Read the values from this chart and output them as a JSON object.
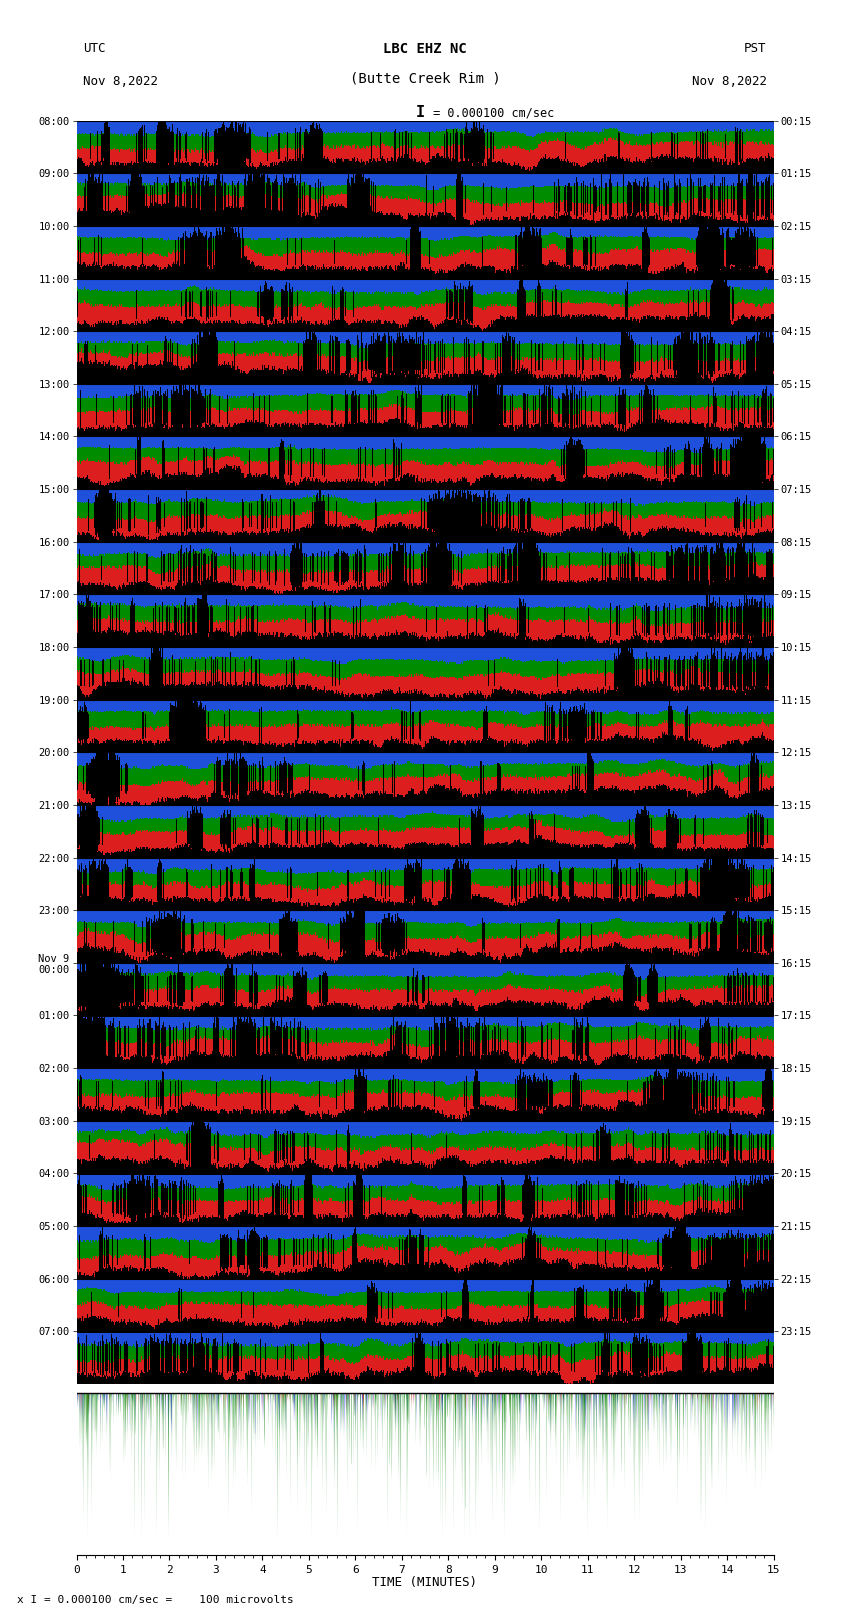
{
  "title_line1": "LBC EHZ NC",
  "title_line2": "(Butte Creek Rim )",
  "scale_text": "= 0.000100 cm/sec",
  "left_label": "UTC",
  "left_date": "Nov 8,2022",
  "right_label": "PST",
  "right_date": "Nov 8,2022",
  "xlabel": "TIME (MINUTES)",
  "bottom_note": "x I = 0.000100 cm/sec =    100 microvolts",
  "utc_times": [
    "08:00",
    "09:00",
    "10:00",
    "11:00",
    "12:00",
    "13:00",
    "14:00",
    "15:00",
    "16:00",
    "17:00",
    "18:00",
    "19:00",
    "20:00",
    "21:00",
    "22:00",
    "23:00",
    "Nov 9\n00:00",
    "01:00",
    "02:00",
    "03:00",
    "04:00",
    "05:00",
    "06:00",
    "07:00"
  ],
  "pst_times": [
    "00:15",
    "01:15",
    "02:15",
    "03:15",
    "04:15",
    "05:15",
    "06:15",
    "07:15",
    "08:15",
    "09:15",
    "10:15",
    "11:15",
    "12:15",
    "13:15",
    "14:15",
    "15:15",
    "16:15",
    "17:15",
    "18:15",
    "19:15",
    "20:15",
    "21:15",
    "22:15",
    "23:15"
  ],
  "n_rows": 24,
  "n_minutes": 15,
  "bg_color": "#ffffff",
  "figsize": [
    8.5,
    16.13
  ],
  "row_colors_cycle": [
    [
      "blue",
      "green",
      "red",
      "black"
    ],
    [
      "red",
      "blue",
      "green",
      "black"
    ],
    [
      "green",
      "red",
      "blue",
      "black"
    ],
    [
      "blue",
      "red",
      "green",
      "black"
    ]
  ]
}
